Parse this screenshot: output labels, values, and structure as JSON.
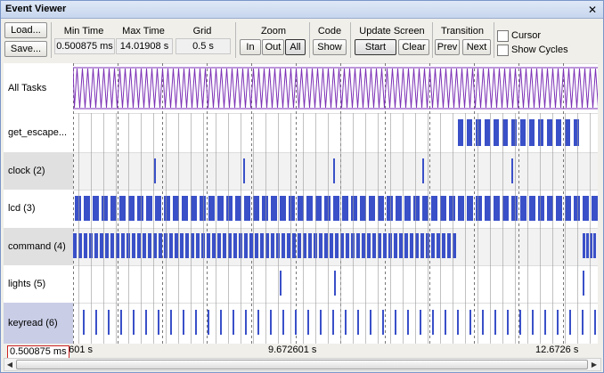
{
  "window": {
    "title": "Event Viewer"
  },
  "toolbar": {
    "load_label": "Load...",
    "save_label": "Save...",
    "min_time_header": "Min Time",
    "min_time_value": "0.500875 ms",
    "max_time_header": "Max Time",
    "max_time_value": "14.01908 s",
    "grid_header": "Grid",
    "grid_value": "0.5 s",
    "zoom_header": "Zoom",
    "zoom_in": "In",
    "zoom_out": "Out",
    "zoom_all": "All",
    "code_header": "Code",
    "code_show": "Show",
    "update_header": "Update Screen",
    "update_start": "Start",
    "update_clear": "Clear",
    "transition_header": "Transition",
    "transition_prev": "Prev",
    "transition_next": "Next",
    "cursor_label": "Cursor",
    "show_cycles_label": "Show Cycles",
    "cursor_checked": false,
    "show_cycles_checked": false
  },
  "tasks": [
    {
      "name": "All Tasks"
    },
    {
      "name": "get_escape..."
    },
    {
      "name": "clock (2)"
    },
    {
      "name": "lcd (3)"
    },
    {
      "name": "command (4)"
    },
    {
      "name": "lights (5)"
    },
    {
      "name": "keyread (6)"
    }
  ],
  "timeline": {
    "cursor_time": "0.500875 ms",
    "axis_labels": [
      "6601 s",
      "9.672601 s",
      "12.6726 s"
    ]
  },
  "colors": {
    "all_tasks_trace": "#7b2fb5",
    "task_bar": "#3a50c8",
    "grid_line": "#777777",
    "row_alt": "#f2f2f2",
    "label_alt": "#e0e0e0",
    "label_selected": "#c9cde6"
  }
}
